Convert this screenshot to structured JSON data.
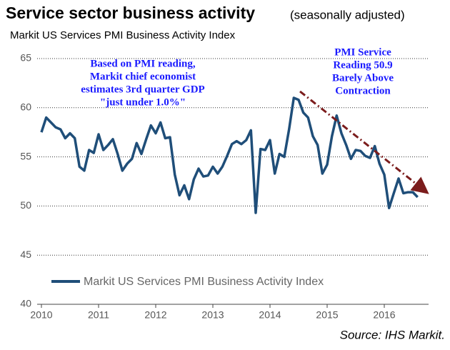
{
  "chart_data": {
    "type": "line",
    "title": "Service sector business activity",
    "title_note": "(seasonally adjusted)",
    "subtitle": "Markit US Services PMI Business Activity Index",
    "source": "Source: IHS Markit.",
    "annotations": [
      "Based on PMI reading,",
      "Markit chief economist",
      "estimates 3rd quarter GDP",
      "\"just under 1.0%\"",
      "PMI Service",
      "Reading 50.9",
      "Barely Above",
      "Contraction"
    ],
    "categories": [
      "2010",
      null,
      null,
      null,
      null,
      null,
      null,
      null,
      null,
      null,
      null,
      null,
      "2011",
      null,
      null,
      null,
      null,
      null,
      null,
      null,
      null,
      null,
      null,
      null,
      "2012",
      null,
      null,
      null,
      null,
      null,
      null,
      null,
      null,
      null,
      null,
      null,
      "2013",
      null,
      null,
      null,
      null,
      null,
      null,
      null,
      null,
      null,
      null,
      null,
      "2014",
      null,
      null,
      null,
      null,
      null,
      null,
      null,
      null,
      null,
      null,
      null,
      "2015",
      null,
      null,
      null,
      null,
      null,
      null,
      null,
      null,
      null,
      null,
      null,
      "2016",
      null,
      null,
      null,
      null,
      null,
      null,
      null
    ],
    "series": [
      {
        "name": "Markit US Services PMI Business Activity Index",
        "color": "#1f4e79",
        "values": [
          57.5,
          59,
          58.5,
          58,
          57.8,
          56.9,
          57.4,
          56.9,
          54,
          53.6,
          55.7,
          55.4,
          57.3,
          55.7,
          56.2,
          56.8,
          55.3,
          53.6,
          54.3,
          54.8,
          56.4,
          55.3,
          56.8,
          58.2,
          57.4,
          58.5,
          56.9,
          57,
          53.2,
          51.1,
          52.1,
          50.7,
          52.7,
          53.8,
          53,
          53.1,
          54,
          53.3,
          54,
          55.1,
          56.3,
          56.6,
          56.3,
          56.7,
          57.7,
          49.3,
          55.8,
          55.7,
          56.7,
          53.3,
          55.3,
          55,
          57.8,
          61,
          60.8,
          59.5,
          59,
          57.1,
          56.2,
          53.3,
          54.2,
          57.1,
          59.2,
          57.4,
          56.2,
          54.8,
          55.7,
          55.6,
          55.1,
          54.9,
          56.1,
          54.3,
          53.2,
          49.8,
          51.3,
          52.8,
          51.3,
          51.4,
          51.4,
          50.9
        ]
      }
    ],
    "ylim": [
      40,
      65
    ],
    "yticks": [
      40,
      45,
      50,
      55,
      60,
      65
    ],
    "grid": true
  }
}
